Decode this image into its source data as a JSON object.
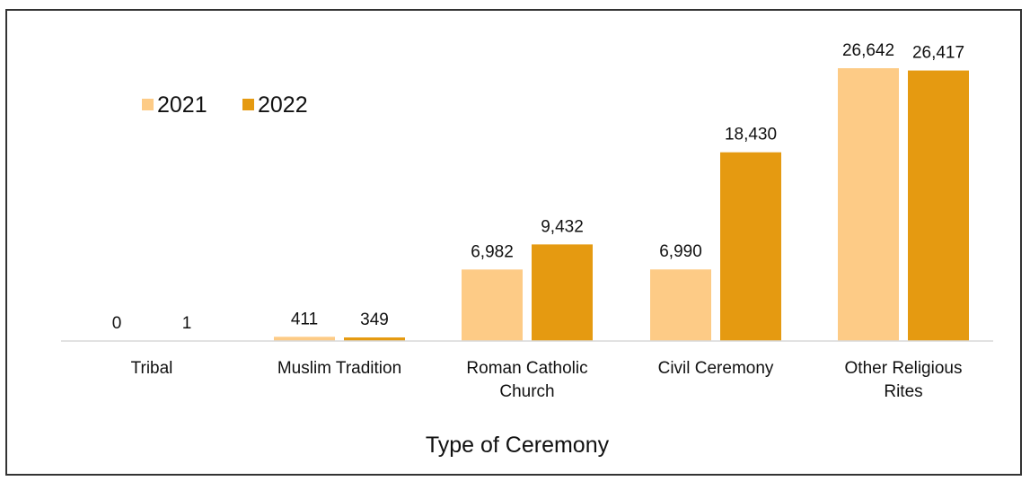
{
  "chart_data": {
    "type": "bar",
    "categories": [
      [
        "Tribal"
      ],
      [
        "Muslim Tradition"
      ],
      [
        "Roman Catholic",
        "Church"
      ],
      [
        "Civil Ceremony"
      ],
      [
        "Other Religious",
        "Rites"
      ]
    ],
    "series": [
      {
        "name": "2021",
        "values": [
          0,
          411,
          6982,
          6990,
          26642
        ],
        "labels": [
          "0",
          "411",
          "6,982",
          "6,990",
          "26,642"
        ],
        "color": "#FDCB86"
      },
      {
        "name": "2022",
        "values": [
          1,
          349,
          9432,
          18430,
          26417
        ],
        "labels": [
          "1",
          "349",
          "9,432",
          "18,430",
          "26,417"
        ],
        "color": "#E59A11"
      }
    ],
    "title": "",
    "xlabel": "Type of Ceremony",
    "ylabel": "",
    "ylim": [
      0,
      26642
    ],
    "grid": false,
    "legend": "top-left",
    "axis_color": "#D9D9D9"
  }
}
